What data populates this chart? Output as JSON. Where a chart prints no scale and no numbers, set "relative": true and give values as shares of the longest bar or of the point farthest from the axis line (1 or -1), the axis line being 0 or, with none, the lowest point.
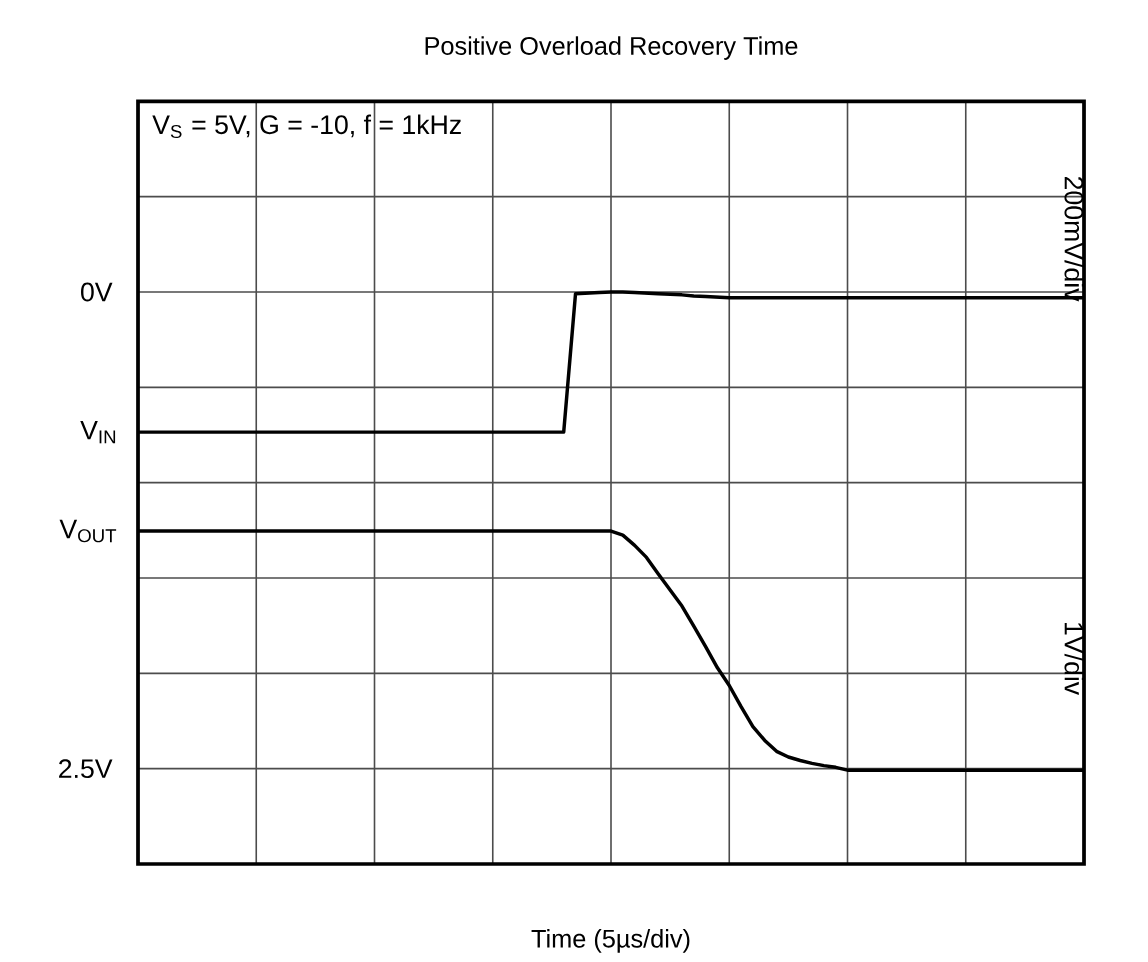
{
  "chart_data": {
    "type": "line",
    "title": "Positive Overload Recovery Time",
    "xlabel": "Time (5µs/div)",
    "relative": true,
    "annotations": [
      "V$_{S}$ = 5V, G = -10, f = 1kHz",
      "200mV/div",
      "1V/div",
      "0V",
      "2.5V"
    ],
    "categories": [
      null,
      null,
      null,
      null,
      null,
      null,
      null,
      null,
      null,
      null,
      null,
      null,
      null,
      null,
      null,
      null,
      null,
      null,
      null,
      null,
      null,
      null,
      null,
      null,
      null,
      null,
      null,
      null,
      null,
      null,
      null,
      null,
      null,
      null,
      null,
      null,
      null,
      null,
      null,
      null,
      null,
      null,
      null,
      null,
      null,
      null,
      null,
      null,
      null,
      null,
      null,
      null,
      null,
      null,
      null,
      null,
      null,
      null,
      null,
      null,
      null,
      null,
      null,
      null,
      null,
      null,
      null,
      null,
      null,
      null,
      null,
      null,
      null,
      null,
      null,
      null,
      null,
      null,
      null,
      null,
      null
    ],
    "grid": true,
    "marker": "none",
    "line_style": "solid",
    "series": [
      {
        "name": "V$_{IN}$",
        "color": "#000000",
        "values": [
          0.755,
          0.755,
          0.755,
          0.755,
          0.755,
          0.755,
          0.755,
          0.755,
          0.755,
          0.755,
          0.755,
          0.755,
          0.755,
          0.755,
          0.755,
          0.755,
          0.755,
          0.755,
          0.755,
          0.755,
          0.755,
          0.755,
          0.755,
          0.755,
          0.755,
          0.755,
          0.755,
          0.755,
          0.755,
          0.755,
          0.755,
          0.755,
          0.755,
          0.755,
          0.755,
          0.755,
          0.755,
          0.997,
          0.998,
          0.999,
          1,
          1,
          0.999,
          0.998,
          0.997,
          0.996,
          0.995,
          0.993,
          0.992,
          0.991,
          0.99,
          0.99,
          0.99,
          0.99,
          0.99,
          0.99,
          0.99,
          0.99,
          0.99,
          0.99,
          0.99,
          0.99,
          0.99,
          0.99,
          0.99,
          0.99,
          0.99,
          0.99,
          0.99,
          0.99,
          0.99,
          0.99,
          0.99,
          0.99,
          0.99,
          0.99,
          0.99,
          0.99,
          0.99,
          0.99,
          0.99
        ]
      },
      {
        "name": "V$_{OUT}$",
        "color": "#000000",
        "values": [
          0.582,
          0.582,
          0.582,
          0.582,
          0.582,
          0.582,
          0.582,
          0.582,
          0.582,
          0.582,
          0.582,
          0.582,
          0.582,
          0.582,
          0.582,
          0.582,
          0.582,
          0.582,
          0.582,
          0.582,
          0.582,
          0.582,
          0.582,
          0.582,
          0.582,
          0.582,
          0.582,
          0.582,
          0.582,
          0.582,
          0.582,
          0.582,
          0.582,
          0.582,
          0.582,
          0.582,
          0.582,
          0.582,
          0.582,
          0.582,
          0.582,
          0.575,
          0.557,
          0.536,
          0.507,
          0.479,
          0.451,
          0.416,
          0.38,
          0.343,
          0.312,
          0.275,
          0.24,
          0.216,
          0.197,
          0.187,
          0.181,
          0.176,
          0.172,
          0.169,
          0.164,
          0.164,
          0.164,
          0.164,
          0.164,
          0.164,
          0.164,
          0.164,
          0.164,
          0.164,
          0.164,
          0.164,
          0.164,
          0.164,
          0.164,
          0.164,
          0.164,
          0.164,
          0.164,
          0.164,
          0.164
        ]
      }
    ]
  }
}
